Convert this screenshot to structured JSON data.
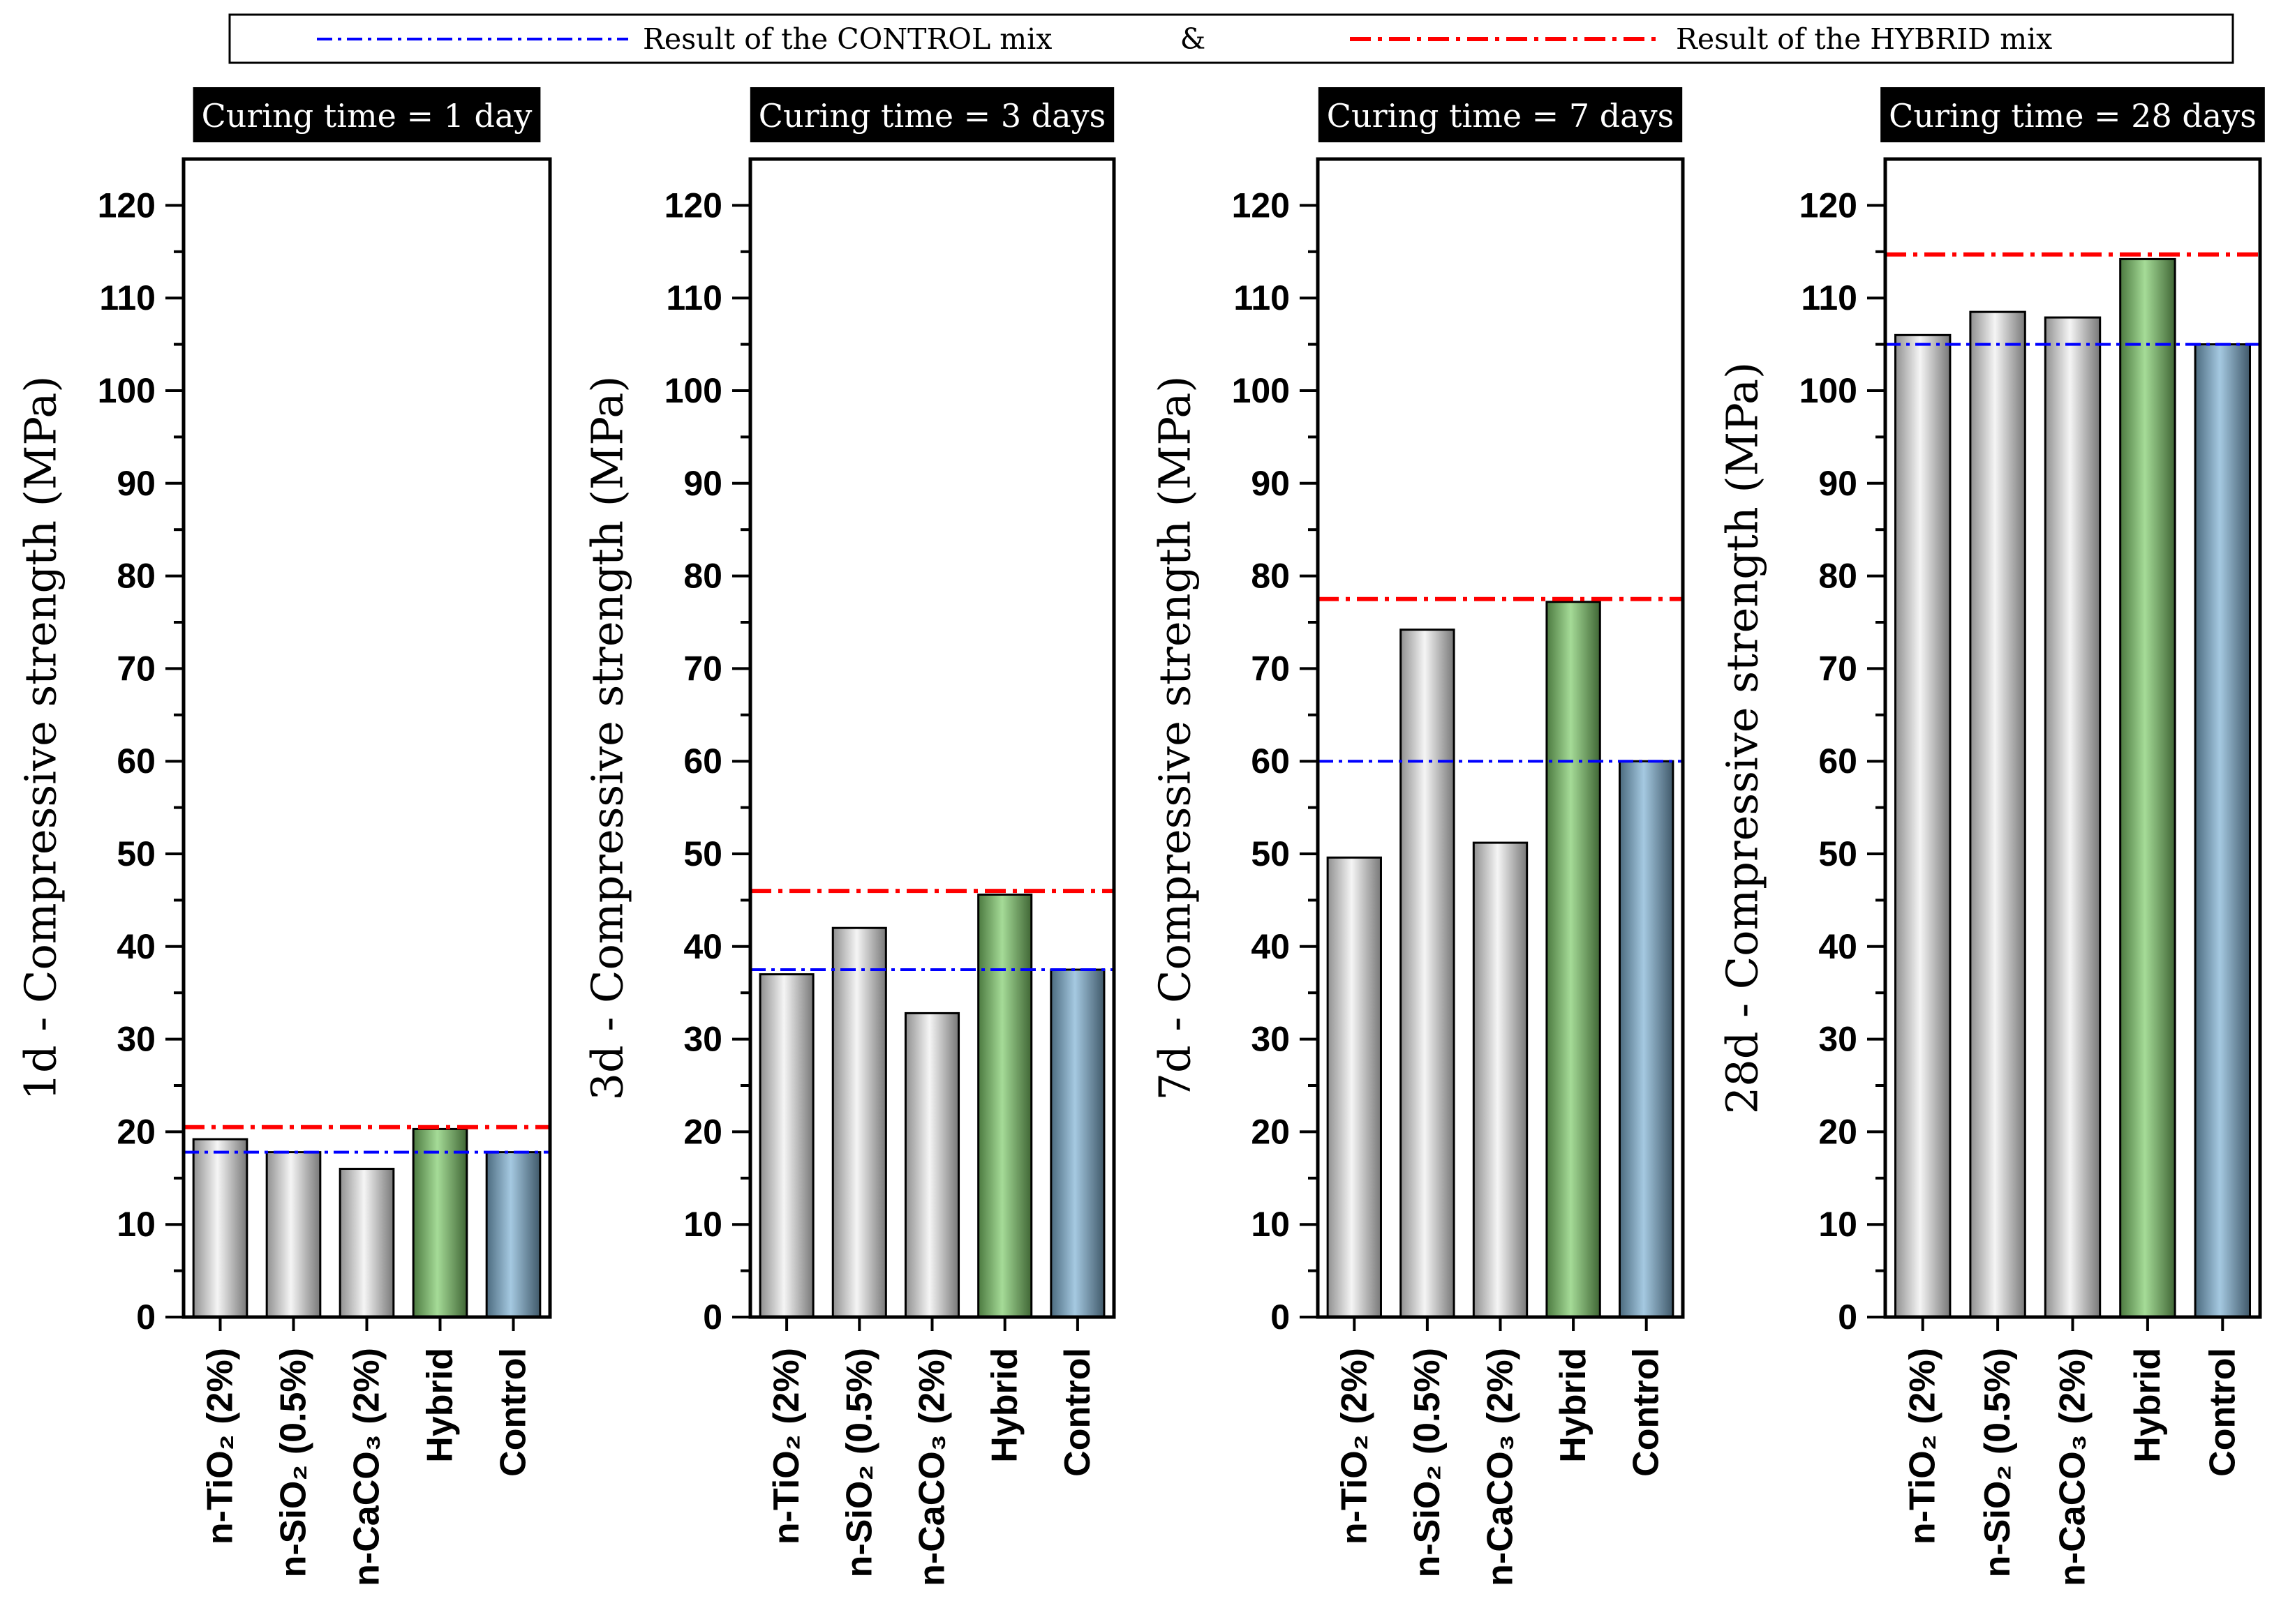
{
  "legend": {
    "control_label": "Result of the CONTROL mix",
    "separator": "&",
    "hybrid_label": "Result of the HYBRID mix"
  },
  "colors": {
    "control_line": "#0000ff",
    "hybrid_line": "#ff0000",
    "title_box": "#000000",
    "title_text": "#ffffff",
    "bars": [
      "#f0f0f0",
      "#f0f0f0",
      "#f0f0f0",
      "#7fcc6a",
      "#7fb2d4"
    ]
  },
  "chart_data": [
    {
      "type": "bar",
      "title": "Curing time = 1 day",
      "ylabel": "1d - Compressive strength (MPa)",
      "xlabel": "",
      "categories": [
        "n-TiO₂ (2%)",
        "n-SiO₂ (0.5%)",
        "n-CaCO₃ (2%)",
        "Hybrid",
        "Control"
      ],
      "values": [
        19.2,
        17.8,
        16.0,
        20.3,
        17.8
      ],
      "reference_lines": {
        "control": 17.8,
        "hybrid": 20.5
      },
      "ylim": [
        0,
        125
      ],
      "yticks": [
        0,
        10,
        20,
        30,
        40,
        50,
        60,
        70,
        80,
        90,
        100,
        110,
        120
      ]
    },
    {
      "type": "bar",
      "title": "Curing time = 3 days",
      "ylabel": "3d - Compressive strength (MPa)",
      "xlabel": "",
      "categories": [
        "n-TiO₂ (2%)",
        "n-SiO₂ (0.5%)",
        "n-CaCO₃ (2%)",
        "Hybrid",
        "Control"
      ],
      "values": [
        37.0,
        42.0,
        32.8,
        45.6,
        37.5
      ],
      "reference_lines": {
        "control": 37.5,
        "hybrid": 46.0
      },
      "ylim": [
        0,
        125
      ],
      "yticks": [
        0,
        10,
        20,
        30,
        40,
        50,
        60,
        70,
        80,
        90,
        100,
        110,
        120
      ]
    },
    {
      "type": "bar",
      "title": "Curing time = 7 days",
      "ylabel": "7d - Compressive strength (MPa)",
      "xlabel": "",
      "categories": [
        "n-TiO₂ (2%)",
        "n-SiO₂ (0.5%)",
        "n-CaCO₃ (2%)",
        "Hybrid",
        "Control"
      ],
      "values": [
        49.6,
        74.2,
        51.2,
        77.2,
        60.0
      ],
      "reference_lines": {
        "control": 60.0,
        "hybrid": 77.5
      },
      "ylim": [
        0,
        125
      ],
      "yticks": [
        0,
        10,
        20,
        30,
        40,
        50,
        60,
        70,
        80,
        90,
        100,
        110,
        120
      ]
    },
    {
      "type": "bar",
      "title": "Curing time = 28 days",
      "ylabel": "28d - Compressive strength (MPa)",
      "xlabel": "",
      "categories": [
        "n-TiO₂ (2%)",
        "n-SiO₂ (0.5%)",
        "n-CaCO₃ (2%)",
        "Hybrid",
        "Control"
      ],
      "values": [
        106.0,
        108.5,
        107.9,
        114.2,
        105.0
      ],
      "reference_lines": {
        "control": 105.0,
        "hybrid": 114.7
      },
      "ylim": [
        0,
        125
      ],
      "yticks": [
        0,
        10,
        20,
        30,
        40,
        50,
        60,
        70,
        80,
        90,
        100,
        110,
        120
      ]
    }
  ]
}
